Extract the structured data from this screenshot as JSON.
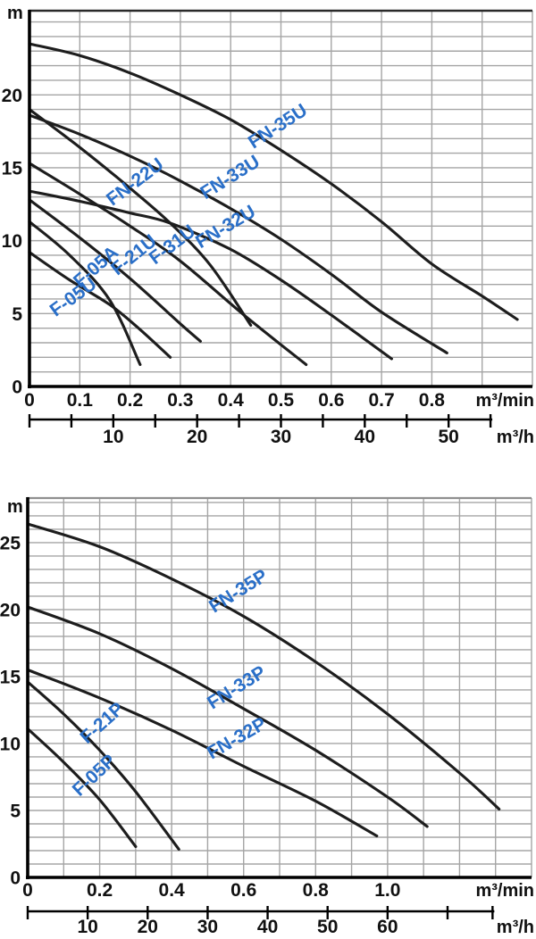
{
  "colors": {
    "background": "#ffffff",
    "curve": "#1d1d1d",
    "grid": "#a5a5a5",
    "axis": "#000000",
    "curve_label": "#2a6fc8",
    "tick_text": "#111111"
  },
  "chart_data": [
    {
      "type": "line",
      "id": "upper-chart-U-series",
      "y_unit": "m",
      "x_unit_primary": "m³/min",
      "x_unit_secondary": "m³/h",
      "xlim": [
        0,
        1.0
      ],
      "ylim": [
        0,
        25.8
      ],
      "grid": {
        "x_step": 0.1,
        "y_step": 1,
        "on": true
      },
      "x_ticks": {
        "values": [
          0,
          0.1,
          0.2,
          0.3,
          0.4,
          0.5,
          0.6,
          0.7,
          0.8
        ],
        "labels": [
          "0",
          "0.1",
          "0.2",
          "0.3",
          "0.4",
          "0.5",
          "0.6",
          "0.7",
          "0.8"
        ]
      },
      "y_ticks": {
        "values": [
          0,
          5,
          10,
          15,
          20
        ],
        "labels": [
          "0",
          "5",
          "10",
          "15",
          "20"
        ]
      },
      "secondary_axis": {
        "unit": "m³/h",
        "tick_values": [
          0,
          5,
          10,
          15,
          20,
          25,
          30,
          35,
          40,
          45,
          50,
          55
        ],
        "label_values": [
          10,
          20,
          30,
          40,
          50
        ]
      },
      "series": [
        {
          "name": "FN-35U",
          "points": [
            [
              0,
              23.5
            ],
            [
              0.1,
              22.7
            ],
            [
              0.2,
              21.5
            ],
            [
              0.3,
              20.0
            ],
            [
              0.4,
              18.3
            ],
            [
              0.5,
              16.2
            ],
            [
              0.6,
              13.9
            ],
            [
              0.7,
              11.3
            ],
            [
              0.8,
              8.4
            ],
            [
              0.9,
              6.2
            ],
            [
              0.97,
              4.6
            ]
          ],
          "label": {
            "x": 0.5,
            "y": 17.5,
            "angle": -33
          }
        },
        {
          "name": "FN-33U",
          "points": [
            [
              0,
              18.6
            ],
            [
              0.1,
              17.3
            ],
            [
              0.2,
              15.8
            ],
            [
              0.3,
              14.1
            ],
            [
              0.4,
              12.2
            ],
            [
              0.5,
              10.1
            ],
            [
              0.6,
              7.7
            ],
            [
              0.7,
              5.1
            ],
            [
              0.83,
              2.3
            ]
          ],
          "label": {
            "x": 0.405,
            "y": 14.0,
            "angle": -32
          }
        },
        {
          "name": "FN-22U",
          "points": [
            [
              0,
              19.0
            ],
            [
              0.1,
              16.4
            ],
            [
              0.2,
              13.6
            ],
            [
              0.28,
              11.2
            ],
            [
              0.36,
              8.3
            ],
            [
              0.44,
              4.2
            ]
          ],
          "label": {
            "x": 0.217,
            "y": 13.7,
            "angle": -37
          }
        },
        {
          "name": "FN-32U",
          "points": [
            [
              0,
              13.4
            ],
            [
              0.1,
              12.7
            ],
            [
              0.2,
              11.9
            ],
            [
              0.28,
              11.2
            ],
            [
              0.4,
              9.4
            ],
            [
              0.5,
              7.3
            ],
            [
              0.6,
              4.9
            ],
            [
              0.72,
              1.9
            ]
          ],
          "label": {
            "x": 0.396,
            "y": 10.6,
            "angle": -31
          }
        },
        {
          "name": "F-31U",
          "points": [
            [
              0,
              15.3
            ],
            [
              0.1,
              13.2
            ],
            [
              0.2,
              11.0
            ],
            [
              0.3,
              8.6
            ],
            [
              0.43,
              4.8
            ],
            [
              0.55,
              1.5
            ]
          ],
          "label": {
            "x": 0.291,
            "y": 9.4,
            "angle": -37
          }
        },
        {
          "name": "F-21U",
          "points": [
            [
              0,
              12.8
            ],
            [
              0.1,
              10.2
            ],
            [
              0.2,
              7.4
            ],
            [
              0.3,
              4.3
            ],
            [
              0.34,
              3.1
            ]
          ],
          "label": {
            "x": 0.215,
            "y": 8.7,
            "angle": -39
          }
        },
        {
          "name": "F-05A",
          "points": [
            [
              0,
              11.3
            ],
            [
              0.08,
              9.0
            ],
            [
              0.16,
              5.9
            ],
            [
              0.22,
              1.5
            ]
          ],
          "label": {
            "x": 0.14,
            "y": 7.9,
            "angle": -41
          }
        },
        {
          "name": "F-05U",
          "points": [
            [
              0,
              9.2
            ],
            [
              0.08,
              7.3
            ],
            [
              0.16,
              5.6
            ],
            [
              0.22,
              3.9
            ],
            [
              0.28,
              2.0
            ]
          ],
          "label": {
            "x": 0.094,
            "y": 5.8,
            "angle": -36
          }
        }
      ]
    },
    {
      "type": "line",
      "id": "lower-chart-P-series",
      "y_unit": "m",
      "x_unit_primary": "m³/min",
      "x_unit_secondary": "m³/h",
      "xlim": [
        0,
        1.4
      ],
      "ylim": [
        0,
        28.3
      ],
      "grid": {
        "x_step": 0.1,
        "y_step": 1,
        "on": true
      },
      "x_ticks": {
        "values": [
          0,
          0.2,
          0.4,
          0.6,
          0.8,
          1.0
        ],
        "labels": [
          "0",
          "0.2",
          "0.4",
          "0.6",
          "0.8",
          "1.0"
        ]
      },
      "y_ticks": {
        "values": [
          0,
          5,
          10,
          15,
          20,
          25
        ],
        "labels": [
          "0",
          "5",
          "10",
          "15",
          "20",
          "25"
        ]
      },
      "secondary_axis": {
        "unit": "m³/h",
        "tick_values": [
          0,
          10,
          20,
          30,
          40,
          50,
          60,
          70,
          77.5
        ],
        "label_values": [
          10,
          20,
          30,
          40,
          50,
          60
        ]
      },
      "series": [
        {
          "name": "FN-35P",
          "points": [
            [
              0,
              26.4
            ],
            [
              0.2,
              24.7
            ],
            [
              0.4,
              22.3
            ],
            [
              0.6,
              19.5
            ],
            [
              0.8,
              16.1
            ],
            [
              1.0,
              12.2
            ],
            [
              1.2,
              7.8
            ],
            [
              1.31,
              5.1
            ]
          ],
          "label": {
            "x": 0.594,
            "y": 21.0,
            "angle": -32
          }
        },
        {
          "name": "FN-33P",
          "points": [
            [
              0,
              20.2
            ],
            [
              0.2,
              18.2
            ],
            [
              0.4,
              15.6
            ],
            [
              0.6,
              12.6
            ],
            [
              0.8,
              9.5
            ],
            [
              1.0,
              6.0
            ],
            [
              1.11,
              3.8
            ]
          ],
          "label": {
            "x": 0.589,
            "y": 13.8,
            "angle": -32
          }
        },
        {
          "name": "FN-32P",
          "points": [
            [
              0,
              15.5
            ],
            [
              0.2,
              13.4
            ],
            [
              0.4,
              11.0
            ],
            [
              0.6,
              8.3
            ],
            [
              0.8,
              5.7
            ],
            [
              0.97,
              3.1
            ]
          ],
          "label": {
            "x": 0.589,
            "y": 10.0,
            "angle": -30
          }
        },
        {
          "name": "F-21P",
          "points": [
            [
              0,
              14.6
            ],
            [
              0.1,
              12.2
            ],
            [
              0.2,
              9.5
            ],
            [
              0.3,
              6.4
            ],
            [
              0.42,
              2.1
            ]
          ],
          "label": {
            "x": 0.218,
            "y": 11.2,
            "angle": -42
          }
        },
        {
          "name": "F-05P",
          "points": [
            [
              0,
              11.1
            ],
            [
              0.1,
              8.6
            ],
            [
              0.2,
              5.8
            ],
            [
              0.3,
              2.3
            ]
          ],
          "label": {
            "x": 0.196,
            "y": 7.3,
            "angle": -43
          }
        }
      ]
    }
  ]
}
